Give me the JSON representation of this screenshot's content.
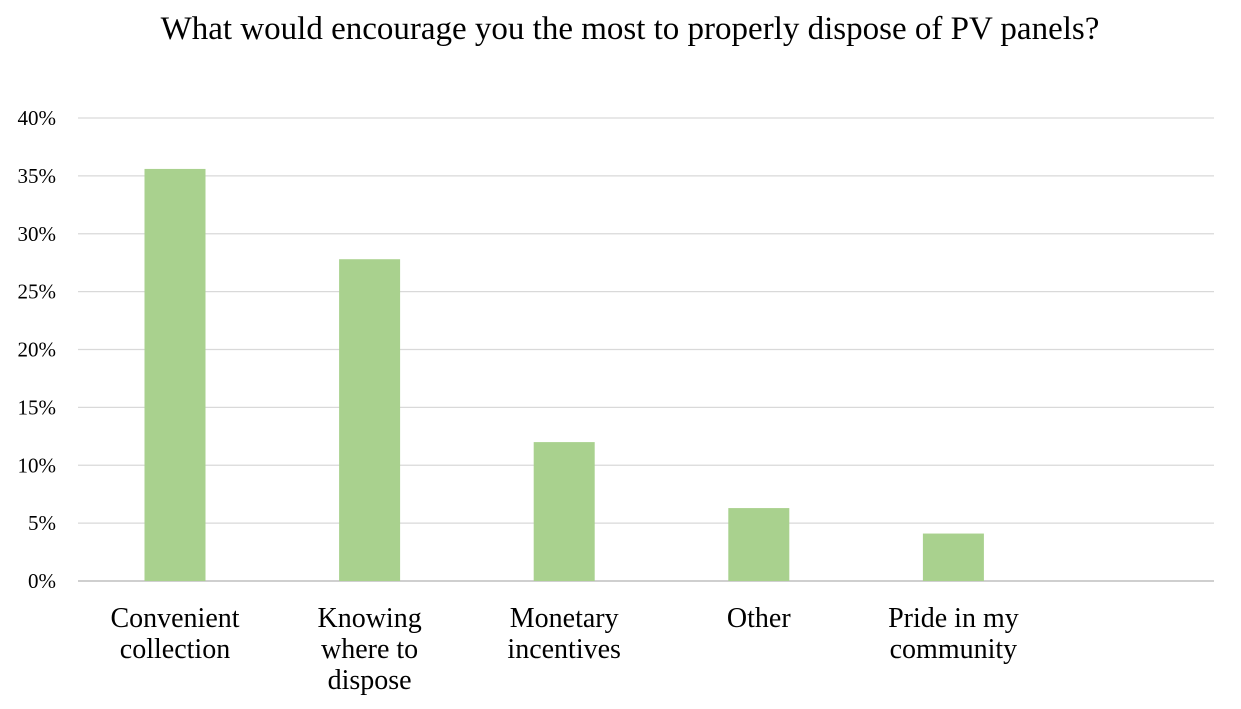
{
  "chart_data": {
    "type": "bar",
    "title": "What would encourage you the most to properly dispose of PV panels?",
    "xlabel": "",
    "ylabel": "",
    "categories": [
      [
        "Convenient",
        "collection"
      ],
      [
        "Knowing",
        "where to",
        "dispose"
      ],
      [
        "Monetary",
        "incentives"
      ],
      [
        "Other"
      ],
      [
        "Pride in my",
        "community"
      ]
    ],
    "values": [
      35.6,
      27.8,
      12.0,
      6.3,
      4.1
    ],
    "ylim": [
      0,
      40
    ],
    "yticks": [
      0,
      5,
      10,
      15,
      20,
      25,
      30,
      35,
      40
    ],
    "ytick_suffix": "%",
    "grid": true,
    "legend": "none",
    "colors": {
      "bar": "#a9d18e",
      "grid": "#d9d9d9",
      "axis": "#bfbfbf"
    }
  }
}
